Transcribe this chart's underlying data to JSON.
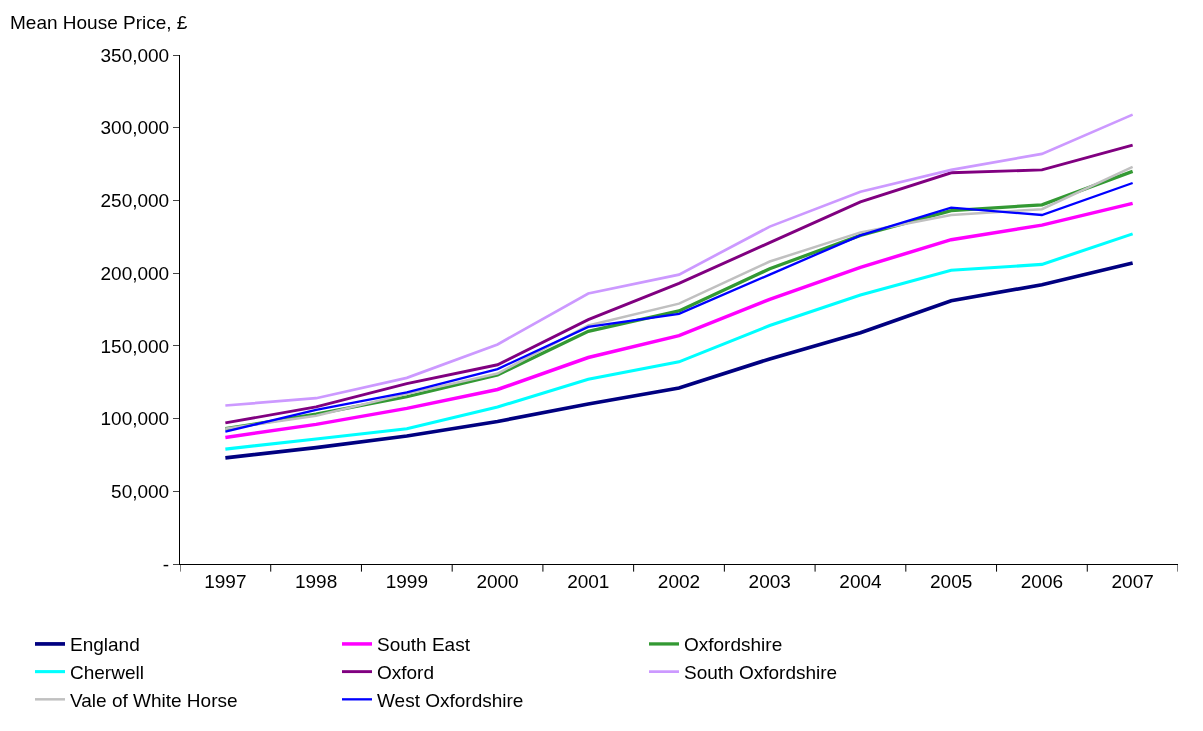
{
  "chart_data": {
    "type": "line",
    "ylabel": "Mean House Price, £",
    "categories": [
      "1997",
      "1998",
      "1999",
      "2000",
      "2001",
      "2002",
      "2003",
      "2004",
      "2005",
      "2006",
      "2007"
    ],
    "ylim": [
      0,
      350000
    ],
    "yticks": [
      {
        "value": 0,
        "label": "-"
      },
      {
        "value": 50000,
        "label": "50,000"
      },
      {
        "value": 100000,
        "label": "100,000"
      },
      {
        "value": 150000,
        "label": "150,000"
      },
      {
        "value": 200000,
        "label": "200,000"
      },
      {
        "value": 250000,
        "label": "250,000"
      },
      {
        "value": 300000,
        "label": "300,000"
      },
      {
        "value": 350000,
        "label": "350,000"
      }
    ],
    "legend": "bottom",
    "marker": "none",
    "line_style": "solid",
    "series": [
      {
        "name": "England",
        "color": "#000080",
        "values": [
          73000,
          80000,
          88000,
          98000,
          110000,
          121000,
          141000,
          159000,
          181000,
          192000,
          207000
        ]
      },
      {
        "name": "South East",
        "color": "#ff00ff",
        "values": [
          87000,
          96000,
          107000,
          120000,
          142000,
          157000,
          182000,
          204000,
          223000,
          233000,
          248000
        ]
      },
      {
        "name": "Oxfordshire",
        "color": "#339933",
        "values": [
          93000,
          103000,
          115000,
          130000,
          160000,
          174000,
          203000,
          226000,
          243000,
          247000,
          270000
        ]
      },
      {
        "name": "Cherwell",
        "color": "#00ffff",
        "values": [
          79000,
          86000,
          93000,
          108000,
          127000,
          139000,
          164000,
          185000,
          202000,
          206000,
          227000
        ]
      },
      {
        "name": "Oxford",
        "color": "#800080",
        "values": [
          97000,
          108000,
          124000,
          137000,
          168000,
          193000,
          221000,
          249000,
          269000,
          271000,
          288000
        ]
      },
      {
        "name": "South Oxfordshire",
        "color": "#cc99ff",
        "values": [
          109000,
          114000,
          128000,
          151000,
          186000,
          199000,
          232000,
          256000,
          271000,
          282000,
          309000
        ]
      },
      {
        "name": "Vale of White Horse",
        "color": "#c0c0c0",
        "values": [
          93000,
          102000,
          117000,
          131000,
          164000,
          179000,
          208000,
          228000,
          240000,
          244000,
          273000
        ]
      },
      {
        "name": "West Oxfordshire",
        "color": "#0000ff",
        "values": [
          91000,
          106000,
          118000,
          134000,
          163000,
          172000,
          199000,
          226000,
          245000,
          240000,
          262000
        ]
      }
    ]
  }
}
